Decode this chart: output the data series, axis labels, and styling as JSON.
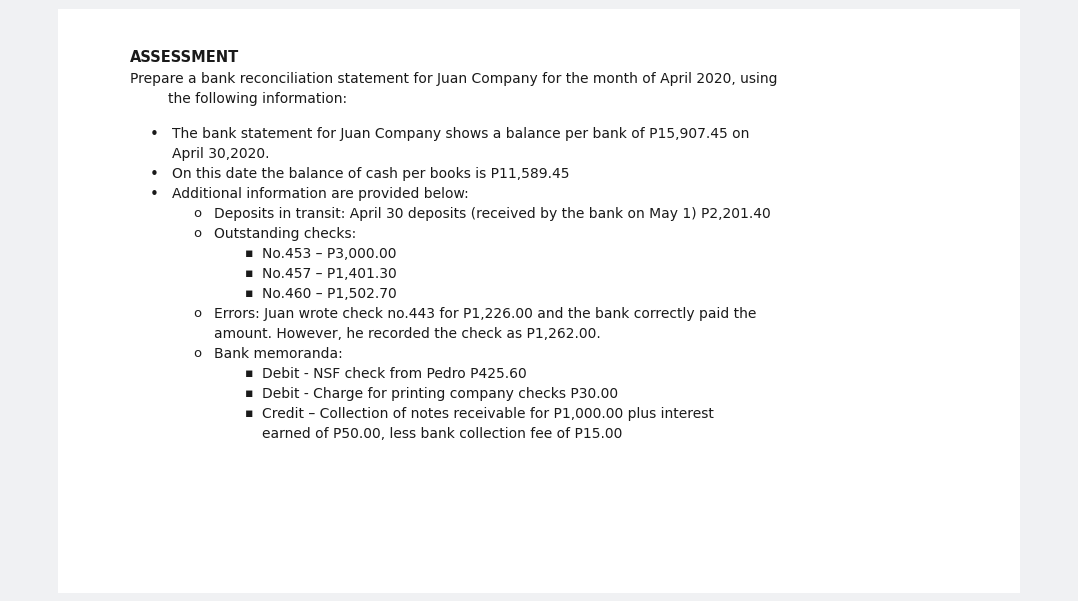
{
  "bg_color": "#f0f1f3",
  "box_color": "#ffffff",
  "title": "ASSESSMENT",
  "intro_line1": "Prepare a bank reconciliation statement for Juan Company for the month of April 2020, using",
  "intro_line2": "the following information:",
  "bullet1_line1": "The bank statement for Juan Company shows a balance per bank of P15,907.45 on",
  "bullet1_line2": "April 30,2020.",
  "bullet2": "On this date the balance of cash per books is P11,589.45",
  "bullet3": "Additional information are provided below:",
  "sub1_line1": "Deposits in transit: April 30 deposits (received by the bank on May 1) P2,201.40",
  "sub2_line1": "Outstanding checks:",
  "sub2_b1": "No.453 – P3,000.00",
  "sub2_b2": "No.457 – P1,401.30",
  "sub2_b3": "No.460 – P1,502.70",
  "sub3_line1": "Errors: Juan wrote check no.443 for P1,226.00 and the bank correctly paid the",
  "sub3_line2": "amount. However, he recorded the check as P1,262.00.",
  "sub4_line1": "Bank memoranda:",
  "sub4_b1": "Debit - NSF check from Pedro P425.60",
  "sub4_b2": "Debit - Charge for printing company checks P30.00",
  "sub4_b3_line1": "Credit – Collection of notes receivable for P1,000.00 plus interest",
  "sub4_b3_line2": "earned of P50.00, less bank collection fee of P15.00",
  "text_color": "#1a1a1a",
  "font_size_title": 10.5,
  "font_size_body": 10.0
}
